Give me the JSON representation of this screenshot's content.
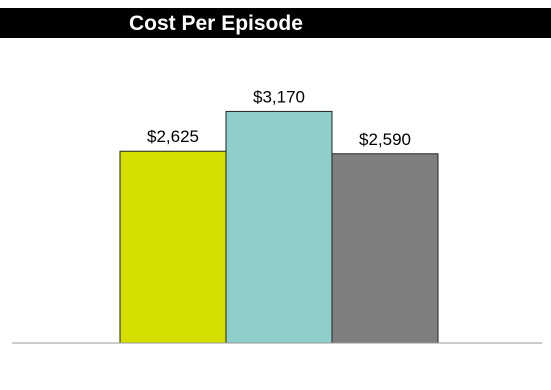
{
  "chart_data": {
    "type": "bar",
    "title": "Cost Per Episode",
    "categories": [
      "",
      "",
      ""
    ],
    "values": [
      2625,
      3170,
      2590
    ],
    "data_labels": [
      "$2,625",
      "$3,170",
      "$2,590"
    ],
    "colors": [
      "#d4df00",
      "#8ecfcb",
      "#7f7f7f"
    ],
    "ylim": [
      0,
      3600
    ],
    "grid": false,
    "legend": "none",
    "xlabel": "",
    "ylabel": ""
  }
}
